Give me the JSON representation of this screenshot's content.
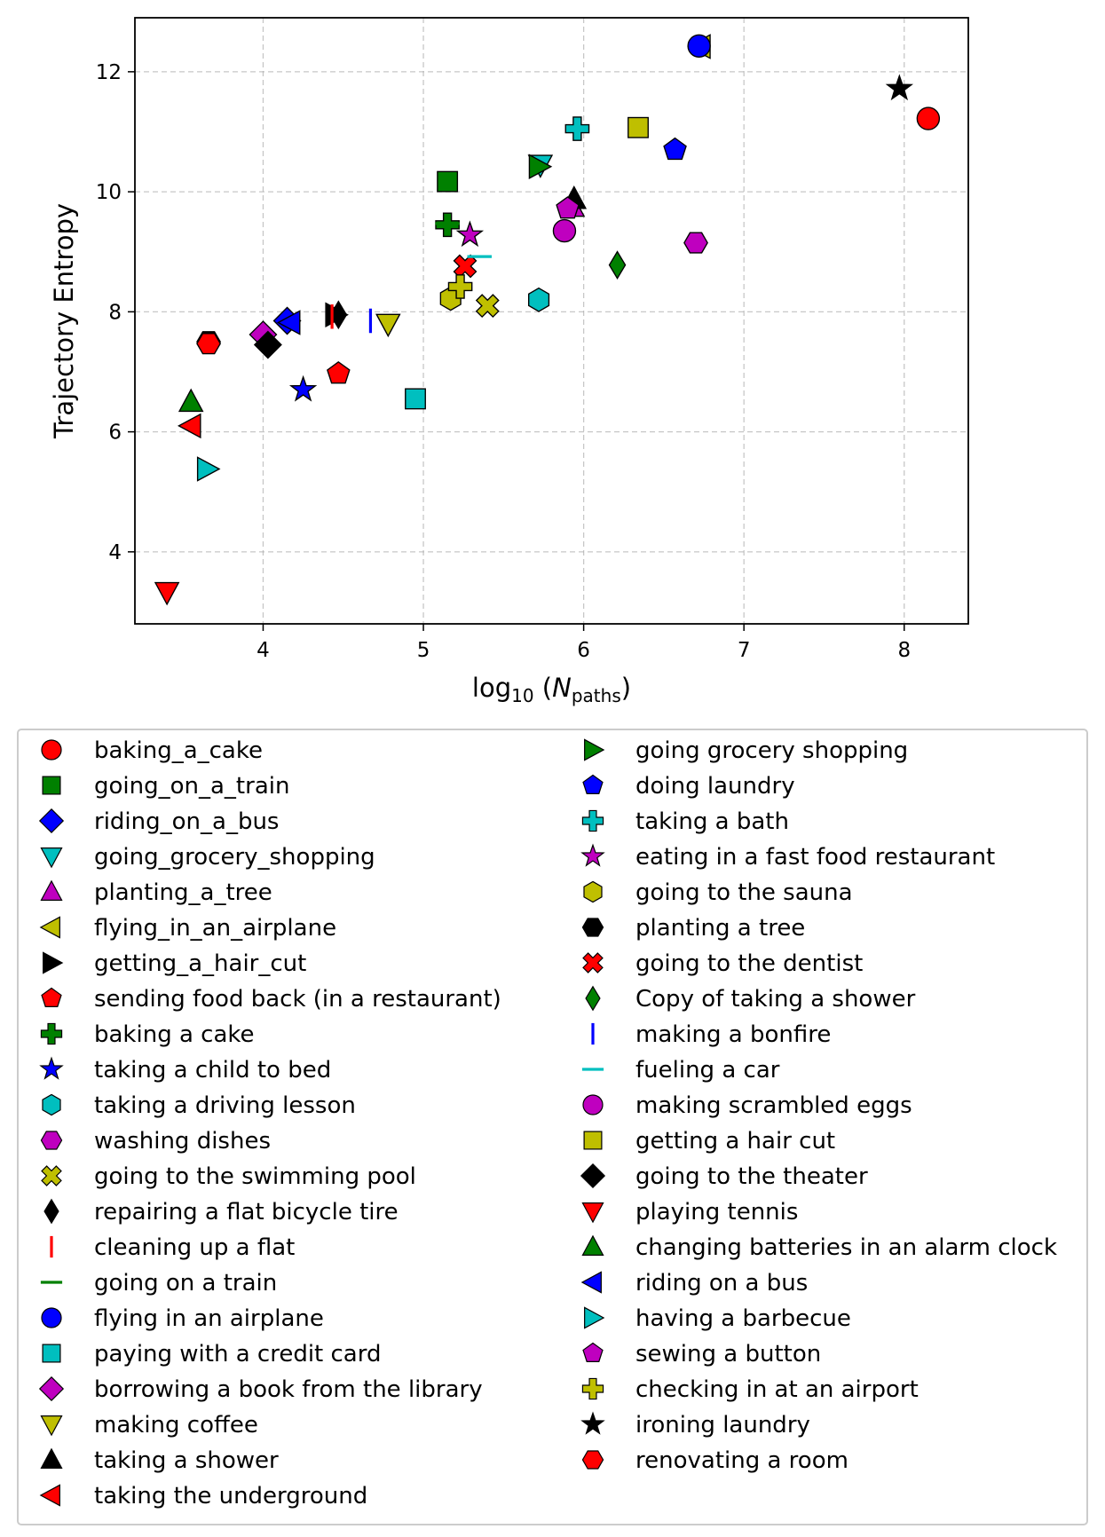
{
  "chart_data": {
    "type": "scatter",
    "xlabel": "log10(N_paths)",
    "xlabel_parts": {
      "prefix": "log",
      "prefix_sub": "10",
      "open": " (",
      "var": "N",
      "var_sub": "paths",
      "close": ")"
    },
    "ylabel": "Trajectory Entropy",
    "xlim": [
      3.2,
      8.4
    ],
    "ylim": [
      2.8,
      12.9
    ],
    "xticks": [
      4,
      5,
      6,
      7,
      8
    ],
    "yticks": [
      4,
      6,
      8,
      10,
      12
    ],
    "grid": true,
    "legend_position": "below",
    "series": [
      {
        "name": "baking_a_cake",
        "marker": "circle",
        "color": "#ff0000",
        "x": 8.15,
        "y": 11.22
      },
      {
        "name": "going_on_a_train",
        "marker": "square",
        "color": "#008000",
        "x": 5.15,
        "y": 10.17
      },
      {
        "name": "riding_on_a_bus",
        "marker": "diamond",
        "color": "#0000ff",
        "x": 4.15,
        "y": 7.85
      },
      {
        "name": "going_grocery_shopping",
        "marker": "triangle-down",
        "color": "#00bfbf",
        "x": 5.73,
        "y": 10.45
      },
      {
        "name": "planting_a_tree",
        "marker": "triangle-up",
        "color": "#bf00bf",
        "x": 5.93,
        "y": 9.75
      },
      {
        "name": "flying_in_an_airplane",
        "marker": "triangle-left",
        "color": "#bfbf00",
        "x": 6.73,
        "y": 12.42
      },
      {
        "name": "getting_a_hair_cut",
        "marker": "triangle-right",
        "color": "#000000",
        "x": 4.45,
        "y": 7.95
      },
      {
        "name": "sending food back (in a restaurant)",
        "marker": "pentagon",
        "color": "#ff0000",
        "x": 4.47,
        "y": 6.97
      },
      {
        "name": "baking a cake",
        "marker": "plus",
        "color": "#008000",
        "x": 5.15,
        "y": 9.45
      },
      {
        "name": "taking a child to bed",
        "marker": "star",
        "color": "#0000ff",
        "x": 4.25,
        "y": 6.7
      },
      {
        "name": "taking a driving lesson",
        "marker": "hexagon",
        "color": "#00bfbf",
        "x": 5.72,
        "y": 8.2
      },
      {
        "name": "washing dishes",
        "marker": "hexagon2",
        "color": "#bf00bf",
        "x": 6.7,
        "y": 9.15
      },
      {
        "name": "going to the swimming pool",
        "marker": "x",
        "color": "#bfbf00",
        "x": 5.4,
        "y": 8.1
      },
      {
        "name": "repairing a flat bicycle tire",
        "marker": "thin-diamond",
        "color": "#000000",
        "x": 4.47,
        "y": 7.95
      },
      {
        "name": "cleaning up a flat",
        "marker": "vline",
        "color": "#ff0000",
        "x": 4.43,
        "y": 7.92
      },
      {
        "name": "going on a train",
        "marker": "hline",
        "color": "#008000",
        "x": 5.15,
        "y": 9.47
      },
      {
        "name": "flying in an airplane",
        "marker": "circle",
        "color": "#0000ff",
        "x": 6.72,
        "y": 12.43
      },
      {
        "name": "paying with a credit card",
        "marker": "square",
        "color": "#00bfbf",
        "x": 4.95,
        "y": 6.55
      },
      {
        "name": "borrowing a book from the library",
        "marker": "diamond",
        "color": "#bf00bf",
        "x": 4.0,
        "y": 7.62
      },
      {
        "name": "making coffee",
        "marker": "triangle-down",
        "color": "#bfbf00",
        "x": 4.78,
        "y": 7.8
      },
      {
        "name": "taking a shower",
        "marker": "triangle-up",
        "color": "#000000",
        "x": 5.94,
        "y": 9.88
      },
      {
        "name": "taking the underground",
        "marker": "triangle-left",
        "color": "#ff0000",
        "x": 3.55,
        "y": 6.1
      },
      {
        "name": "going grocery shopping",
        "marker": "triangle-right",
        "color": "#008000",
        "x": 5.72,
        "y": 10.42
      },
      {
        "name": "doing laundry",
        "marker": "pentagon",
        "color": "#0000ff",
        "x": 6.57,
        "y": 10.7
      },
      {
        "name": "taking a bath",
        "marker": "plus",
        "color": "#00bfbf",
        "x": 5.96,
        "y": 11.05
      },
      {
        "name": "eating in a fast food restaurant",
        "marker": "star",
        "color": "#bf00bf",
        "x": 5.29,
        "y": 9.28
      },
      {
        "name": "going to the sauna",
        "marker": "hexagon",
        "color": "#bfbf00",
        "x": 5.17,
        "y": 8.22
      },
      {
        "name": "planting a tree",
        "marker": "hexagon2",
        "color": "#000000",
        "x": 3.66,
        "y": 7.5
      },
      {
        "name": "going to the dentist",
        "marker": "x",
        "color": "#ff0000",
        "x": 5.26,
        "y": 8.76
      },
      {
        "name": "Copy of taking a shower",
        "marker": "thin-diamond",
        "color": "#008000",
        "x": 6.21,
        "y": 8.78
      },
      {
        "name": "making a bonfire",
        "marker": "vline",
        "color": "#0000ff",
        "x": 4.67,
        "y": 7.85
      },
      {
        "name": "fueling a car",
        "marker": "hline",
        "color": "#00bfbf",
        "x": 5.35,
        "y": 8.92
      },
      {
        "name": "making scrambled eggs",
        "marker": "circle",
        "color": "#bf00bf",
        "x": 5.88,
        "y": 9.35
      },
      {
        "name": "getting a hair cut",
        "marker": "square",
        "color": "#bfbf00",
        "x": 6.34,
        "y": 11.07
      },
      {
        "name": "going to the theater",
        "marker": "diamond",
        "color": "#000000",
        "x": 4.03,
        "y": 7.45
      },
      {
        "name": "playing tennis",
        "marker": "triangle-down",
        "color": "#ff0000",
        "x": 3.4,
        "y": 3.33
      },
      {
        "name": "changing batteries in an alarm clock",
        "marker": "triangle-up",
        "color": "#008000",
        "x": 3.55,
        "y": 6.5
      },
      {
        "name": "riding on a bus",
        "marker": "triangle-left",
        "color": "#0000ff",
        "x": 4.17,
        "y": 7.82
      },
      {
        "name": "having a barbecue",
        "marker": "triangle-right",
        "color": "#00bfbf",
        "x": 3.65,
        "y": 5.38
      },
      {
        "name": "sewing a button",
        "marker": "pentagon",
        "color": "#bf00bf",
        "x": 5.9,
        "y": 9.72
      },
      {
        "name": "checking in at an airport",
        "marker": "plus",
        "color": "#bfbf00",
        "x": 5.23,
        "y": 8.42
      },
      {
        "name": "ironing laundry",
        "marker": "star",
        "color": "#000000",
        "x": 7.97,
        "y": 11.72
      },
      {
        "name": "renovating a room",
        "marker": "hexagon2",
        "color": "#ff0000",
        "x": 3.66,
        "y": 7.47
      }
    ]
  }
}
